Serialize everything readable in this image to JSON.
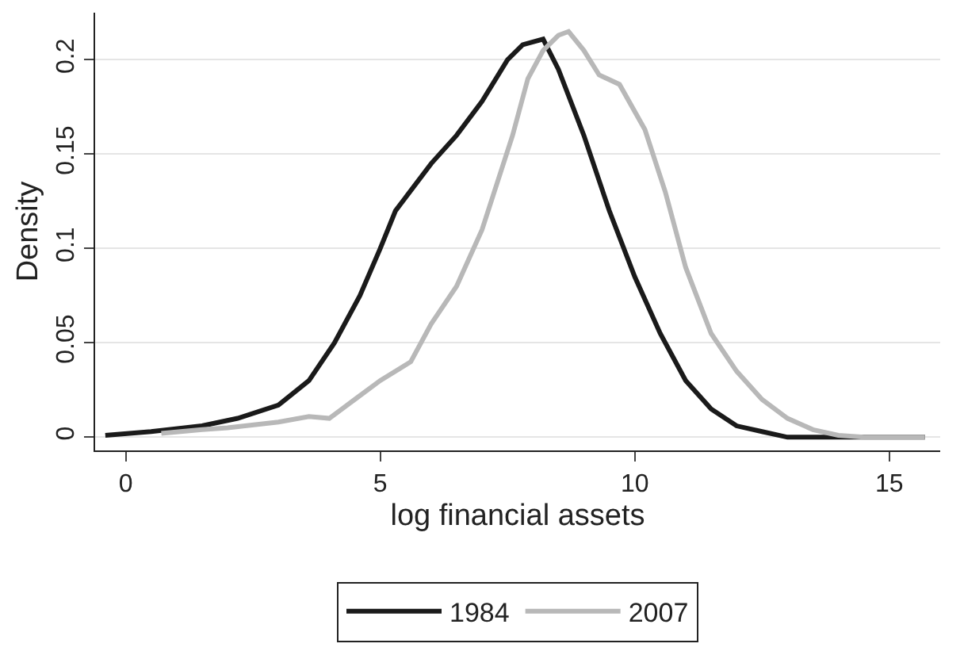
{
  "chart_data": {
    "type": "line",
    "xlabel": "log financial assets",
    "ylabel": "Density",
    "xlim": [
      -0.6,
      16
    ],
    "xticks": [
      0,
      5,
      10,
      15
    ],
    "ylim": [
      -0.007,
      0.225
    ],
    "yticks": [
      0,
      0.05,
      0.1,
      0.15,
      0.2
    ],
    "grid": "y",
    "legend": "bottom",
    "marker": "none",
    "line_style": "solid",
    "series": [
      {
        "name": "1984",
        "color": "#1a1a1a",
        "x": [
          -0.4,
          0.5,
          1.5,
          2.2,
          3,
          3.6,
          4.1,
          4.6,
          5,
          5.3,
          6,
          6.5,
          7,
          7.5,
          7.8,
          8.2,
          8.5,
          9,
          9.5,
          10,
          10.5,
          11,
          11.5,
          12,
          12.5,
          13,
          14,
          15,
          15.7
        ],
        "values": [
          0.001,
          0.003,
          0.006,
          0.01,
          0.017,
          0.03,
          0.05,
          0.075,
          0.1,
          0.12,
          0.145,
          0.16,
          0.178,
          0.2,
          0.208,
          0.211,
          0.195,
          0.16,
          0.12,
          0.085,
          0.055,
          0.03,
          0.015,
          0.006,
          0.003,
          0.0,
          0.0,
          0.0,
          0.0
        ]
      },
      {
        "name": "2007",
        "color": "#b8b8b8",
        "x": [
          0.7,
          1.5,
          2,
          3,
          3.6,
          4,
          4.5,
          5,
          5.6,
          6,
          6.5,
          7,
          7.3,
          7.6,
          7.9,
          8.2,
          8.5,
          8.7,
          9,
          9.3,
          9.7,
          10.2,
          10.6,
          11,
          11.5,
          12,
          12.5,
          13,
          13.5,
          14,
          14.5,
          15,
          15.7
        ],
        "values": [
          0.002,
          0.004,
          0.005,
          0.008,
          0.011,
          0.01,
          0.02,
          0.03,
          0.04,
          0.06,
          0.08,
          0.11,
          0.135,
          0.16,
          0.19,
          0.205,
          0.213,
          0.215,
          0.205,
          0.192,
          0.187,
          0.163,
          0.13,
          0.09,
          0.055,
          0.035,
          0.02,
          0.01,
          0.004,
          0.001,
          0.0,
          0.0,
          0.0
        ]
      }
    ]
  }
}
